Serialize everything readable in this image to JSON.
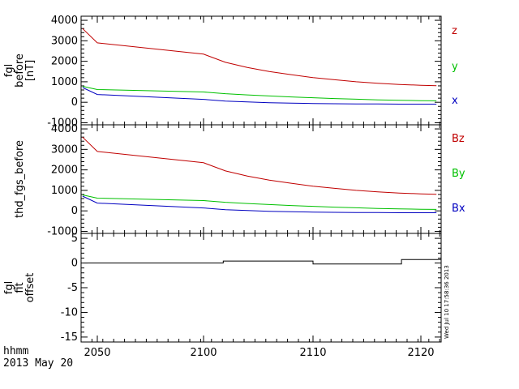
{
  "stamp": "Wed Jul 10 17:58:36 2013",
  "footer": {
    "axis_label": "hhmm",
    "date_label": "2013 May 20"
  },
  "colors": {
    "z": "#c00000",
    "y": "#00c000",
    "x": "#0000c0",
    "offset": "#000000"
  },
  "chart_data": [
    {
      "type": "line",
      "ylabel": [
        "fgl",
        "before",
        "[nT]"
      ],
      "ylim": [
        -1100,
        4200
      ],
      "yticks": [
        -1000,
        0,
        1000,
        2000,
        3000,
        4000
      ],
      "xlim": [
        2047.8,
        2121.3
      ],
      "xticks": [
        2050,
        2100,
        2110,
        2120
      ],
      "xticklabels": [
        "2050",
        "2100",
        "2110",
        "2120"
      ],
      "series": [
        {
          "name": "z",
          "color": "#c00000",
          "x": [
            2048,
            2050,
            2100,
            2102,
            2104,
            2106,
            2108,
            2110,
            2112,
            2114,
            2116,
            2118,
            2120,
            2121
          ],
          "values": [
            3600,
            2900,
            2350,
            1950,
            1700,
            1500,
            1350,
            1200,
            1100,
            1000,
            930,
            870,
            830,
            810
          ]
        },
        {
          "name": "y",
          "color": "#00c000",
          "x": [
            2048,
            2050,
            2100,
            2102,
            2104,
            2106,
            2108,
            2110,
            2112,
            2114,
            2116,
            2118,
            2120,
            2121
          ],
          "values": [
            780,
            620,
            500,
            420,
            360,
            310,
            260,
            220,
            180,
            150,
            120,
            100,
            80,
            70
          ]
        },
        {
          "name": "x",
          "color": "#0000c0",
          "x": [
            2048,
            2050,
            2100,
            2102,
            2104,
            2106,
            2108,
            2110,
            2112,
            2114,
            2116,
            2118,
            2120,
            2121
          ],
          "values": [
            720,
            380,
            140,
            60,
            20,
            -20,
            -40,
            -60,
            -70,
            -80,
            -85,
            -90,
            -90,
            -90
          ]
        }
      ]
    },
    {
      "type": "line",
      "ylabel": [
        "thd_fgs_before"
      ],
      "ylim": [
        -1100,
        4200
      ],
      "yticks": [
        -1000,
        0,
        1000,
        2000,
        3000,
        4000
      ],
      "xlim": [
        2047.8,
        2121.3
      ],
      "xticks": [
        2050,
        2100,
        2110,
        2120
      ],
      "xticklabels": [
        "2050",
        "2100",
        "2110",
        "2120"
      ],
      "series": [
        {
          "name": "Bz",
          "color": "#c00000",
          "x": [
            2048,
            2050,
            2100,
            2102,
            2104,
            2106,
            2108,
            2110,
            2112,
            2114,
            2116,
            2118,
            2120,
            2121
          ],
          "values": [
            3600,
            2900,
            2350,
            1950,
            1700,
            1500,
            1350,
            1200,
            1100,
            1000,
            930,
            870,
            830,
            810
          ]
        },
        {
          "name": "By",
          "color": "#00c000",
          "x": [
            2048,
            2050,
            2100,
            2102,
            2104,
            2106,
            2108,
            2110,
            2112,
            2114,
            2116,
            2118,
            2120,
            2121
          ],
          "values": [
            780,
            620,
            500,
            420,
            360,
            310,
            260,
            220,
            180,
            150,
            120,
            100,
            80,
            70
          ]
        },
        {
          "name": "Bx",
          "color": "#0000c0",
          "x": [
            2048,
            2050,
            2100,
            2102,
            2104,
            2106,
            2108,
            2110,
            2112,
            2114,
            2116,
            2118,
            2120,
            2121
          ],
          "values": [
            720,
            380,
            140,
            60,
            20,
            -20,
            -40,
            -60,
            -70,
            -80,
            -85,
            -90,
            -90,
            -90
          ]
        }
      ]
    },
    {
      "type": "line",
      "ylabel": [
        "fgl",
        "fit",
        "offset"
      ],
      "ylim": [
        -16,
        6
      ],
      "yticks": [
        -15,
        -10,
        -5,
        0,
        5
      ],
      "xlim": [
        2047.8,
        2121.3
      ],
      "xticks": [
        2050,
        2100,
        2110,
        2120
      ],
      "xticklabels": [
        "2050",
        "2100",
        "2110",
        "2120"
      ],
      "series": [
        {
          "name": "",
          "color": "#000000",
          "x": [
            2048,
            2101.8,
            2101.8,
            2110,
            2110,
            2118.2,
            2118.2,
            2121.3
          ],
          "values": [
            0,
            0,
            0.4,
            0.4,
            -0.2,
            -0.2,
            0.7,
            0.7
          ]
        }
      ]
    }
  ]
}
